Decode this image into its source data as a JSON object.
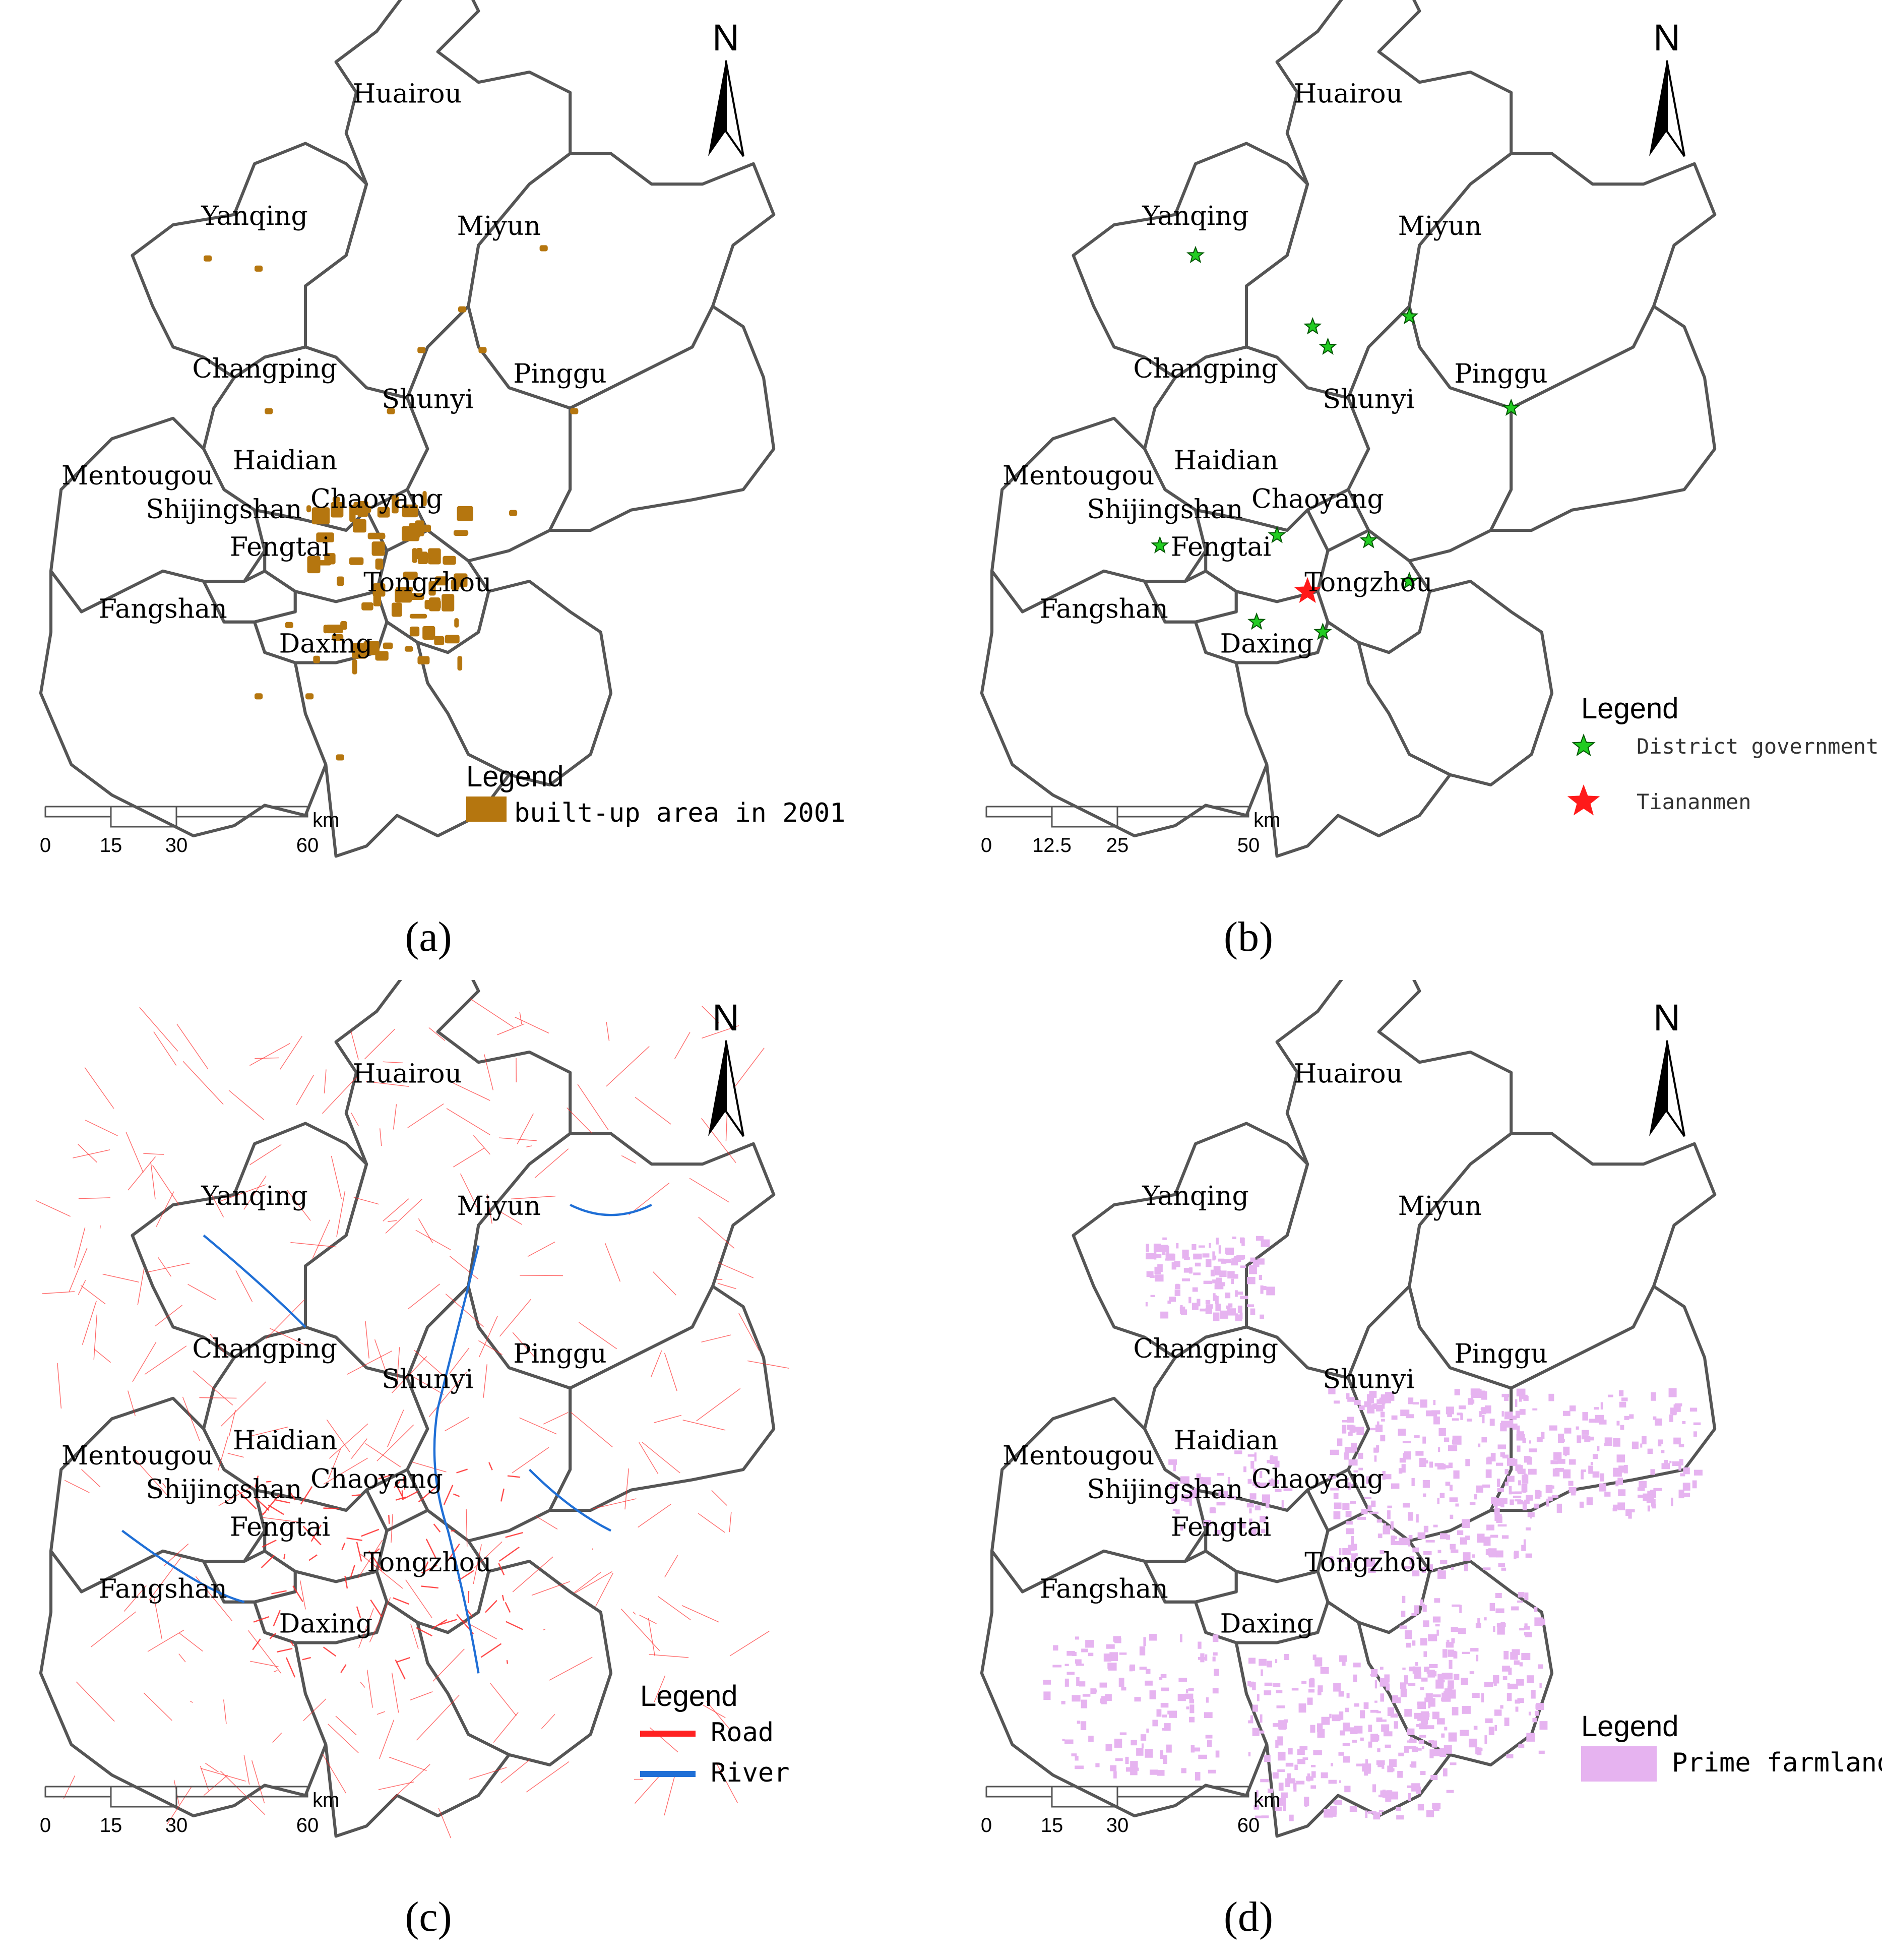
{
  "panels": [
    {
      "id": "a",
      "caption": "(a)",
      "north": "N",
      "districts": [
        "Huairou",
        "Yanqing",
        "Miyun",
        "Changping",
        "Shunyi",
        "Pinggu",
        "Mentougou",
        "Haidian",
        "Shijingshan",
        "Chaoyang",
        "Fengtai",
        "Tongzhou",
        "Fangshan",
        "Daxing"
      ],
      "scale_ticks": [
        "0",
        "15",
        "30",
        "60"
      ],
      "scale_unit": "km",
      "legend_title": "Legend",
      "legend_items": [
        {
          "label": "built-up area in 2001",
          "color": "#b5760f"
        }
      ]
    },
    {
      "id": "b",
      "caption": "(b)",
      "north": "N",
      "districts": [
        "Huairou",
        "Yanqing",
        "Miyun",
        "Changping",
        "Shunyi",
        "Pinggu",
        "Mentougou",
        "Haidian",
        "Shijingshan",
        "Chaoyang",
        "Fengtai",
        "Tongzhou",
        "Fangshan",
        "Daxing"
      ],
      "scale_ticks": [
        "0",
        "12.5",
        "25",
        "50"
      ],
      "scale_unit": "km",
      "legend_title": "Legend",
      "legend_items": [
        {
          "label": "District government",
          "color": "#22cc22",
          "symbol": "star"
        },
        {
          "label": "Tiananmen",
          "color": "#ff1a1a",
          "symbol": "star"
        }
      ]
    },
    {
      "id": "c",
      "caption": "(c)",
      "north": "N",
      "districts": [
        "Huairou",
        "Yanqing",
        "Miyun",
        "Changping",
        "Shunyi",
        "Pinggu",
        "Mentougou",
        "Haidian",
        "Shijingshan",
        "Chaoyang",
        "Fengtai",
        "Tongzhou",
        "Fangshan",
        "Daxing"
      ],
      "scale_ticks": [
        "0",
        "15",
        "30",
        "60"
      ],
      "scale_unit": "km",
      "legend_title": "Legend",
      "legend_items": [
        {
          "label": "Road",
          "color": "#ff2222",
          "symbol": "line"
        },
        {
          "label": "River",
          "color": "#1f6fd6",
          "symbol": "line"
        }
      ]
    },
    {
      "id": "d",
      "caption": "(d)",
      "north": "N",
      "districts": [
        "Huairou",
        "Yanqing",
        "Miyun",
        "Changping",
        "Shunyi",
        "Pinggu",
        "Mentougou",
        "Haidian",
        "Shijingshan",
        "Chaoyang",
        "Fengtai",
        "Tongzhou",
        "Fangshan",
        "Daxing"
      ],
      "scale_ticks": [
        "0",
        "15",
        "30",
        "60"
      ],
      "scale_unit": "km",
      "legend_title": "Legend",
      "legend_items": [
        {
          "label": "Prime farmland",
          "color": "#e6b3f0"
        }
      ]
    }
  ],
  "colors": {
    "builtup": "#b5760f",
    "district_gov": "#22cc22",
    "tiananmen": "#ff1a1a",
    "road": "#ff2a2a",
    "river": "#1f6fd6",
    "farmland": "#e6b3f0",
    "boundary": "#555555"
  }
}
